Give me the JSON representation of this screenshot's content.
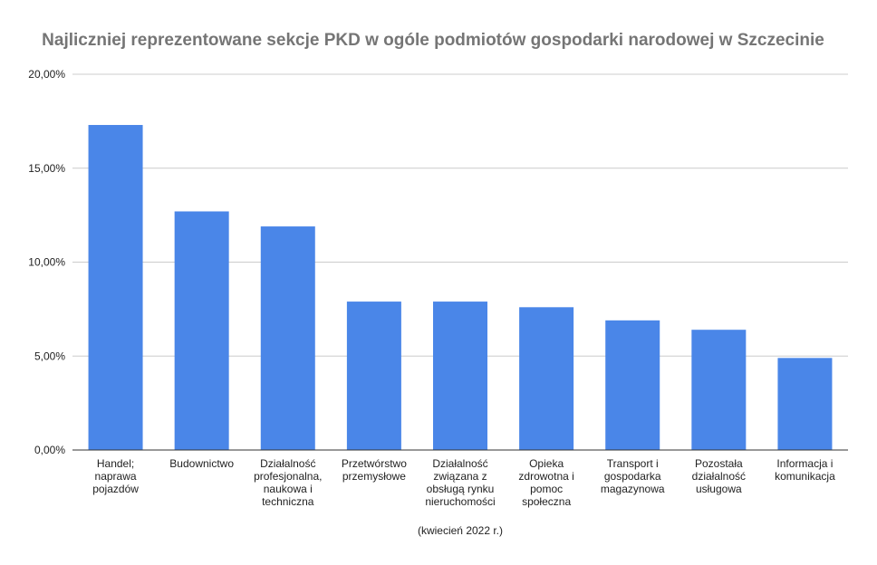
{
  "chart_data": {
    "type": "bar",
    "title": "Najliczniej reprezentowane sekcje PKD w ogóle podmiotów gospodarki narodowej w Szczecinie",
    "xlabel": "(kwiecień 2022 r.)",
    "ylabel": "",
    "ylim": [
      0,
      20
    ],
    "yticks": [
      0,
      5,
      10,
      15,
      20
    ],
    "ytick_labels": [
      "0,00%",
      "5,00%",
      "10,00%",
      "15,00%",
      "20,00%"
    ],
    "categories": [
      [
        "Handel;",
        "naprawa",
        "pojazdów"
      ],
      [
        "Budownictwo"
      ],
      [
        "Działalność",
        "profesjonalna,",
        "naukowa i",
        "techniczna"
      ],
      [
        "Przetwórstwo",
        "przemysłowe"
      ],
      [
        "Działalność",
        "związana z",
        "obsługą rynku",
        "nieruchomości"
      ],
      [
        "Opieka",
        "zdrowotna i",
        "pomoc",
        "społeczna"
      ],
      [
        "Transport i",
        "gospodarka",
        "magazynowa"
      ],
      [
        "Pozostała",
        "działalność",
        "usługowa"
      ],
      [
        "Informacja i",
        "komunikacja"
      ]
    ],
    "values": [
      17.3,
      12.7,
      11.9,
      7.9,
      7.9,
      7.6,
      6.9,
      6.4,
      4.9
    ],
    "grid": true,
    "legend": "none",
    "bar_color": "#4a86e8"
  }
}
